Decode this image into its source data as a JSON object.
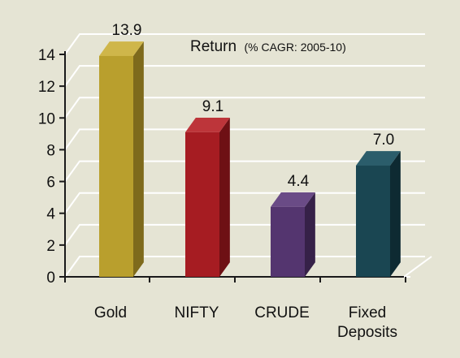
{
  "chart_data": {
    "type": "bar",
    "title": "Return",
    "subtitle": "(% CAGR: 2005-10)",
    "categories": [
      "Gold",
      "NIFTY",
      "CRUDE",
      "Fixed Deposits"
    ],
    "category_lines": [
      [
        "Gold"
      ],
      [
        "NIFTY"
      ],
      [
        "CRUDE"
      ],
      [
        "Fixed",
        "Deposits"
      ]
    ],
    "values": [
      13.9,
      9.1,
      4.4,
      7.0
    ],
    "value_labels": [
      "13.9",
      "9.1",
      "4.4",
      "7.0"
    ],
    "yticks": [
      0,
      2,
      4,
      6,
      8,
      10,
      12,
      14
    ],
    "ylim": [
      0,
      14
    ],
    "grid": true,
    "style": "3d",
    "colors": {
      "background": "#e5e4d4",
      "grid": "#ffffff",
      "axis": "#1a1a1a",
      "bars": [
        {
          "front": "#b99f2d",
          "side": "#7e6a1c",
          "top": "#cfb64a"
        },
        {
          "front": "#a61c22",
          "side": "#6e1014",
          "top": "#bd353a"
        },
        {
          "front": "#54356f",
          "side": "#362148",
          "top": "#6a4b86"
        },
        {
          "front": "#1a4652",
          "side": "#0e2a32",
          "top": "#2b5d6b"
        }
      ]
    }
  }
}
